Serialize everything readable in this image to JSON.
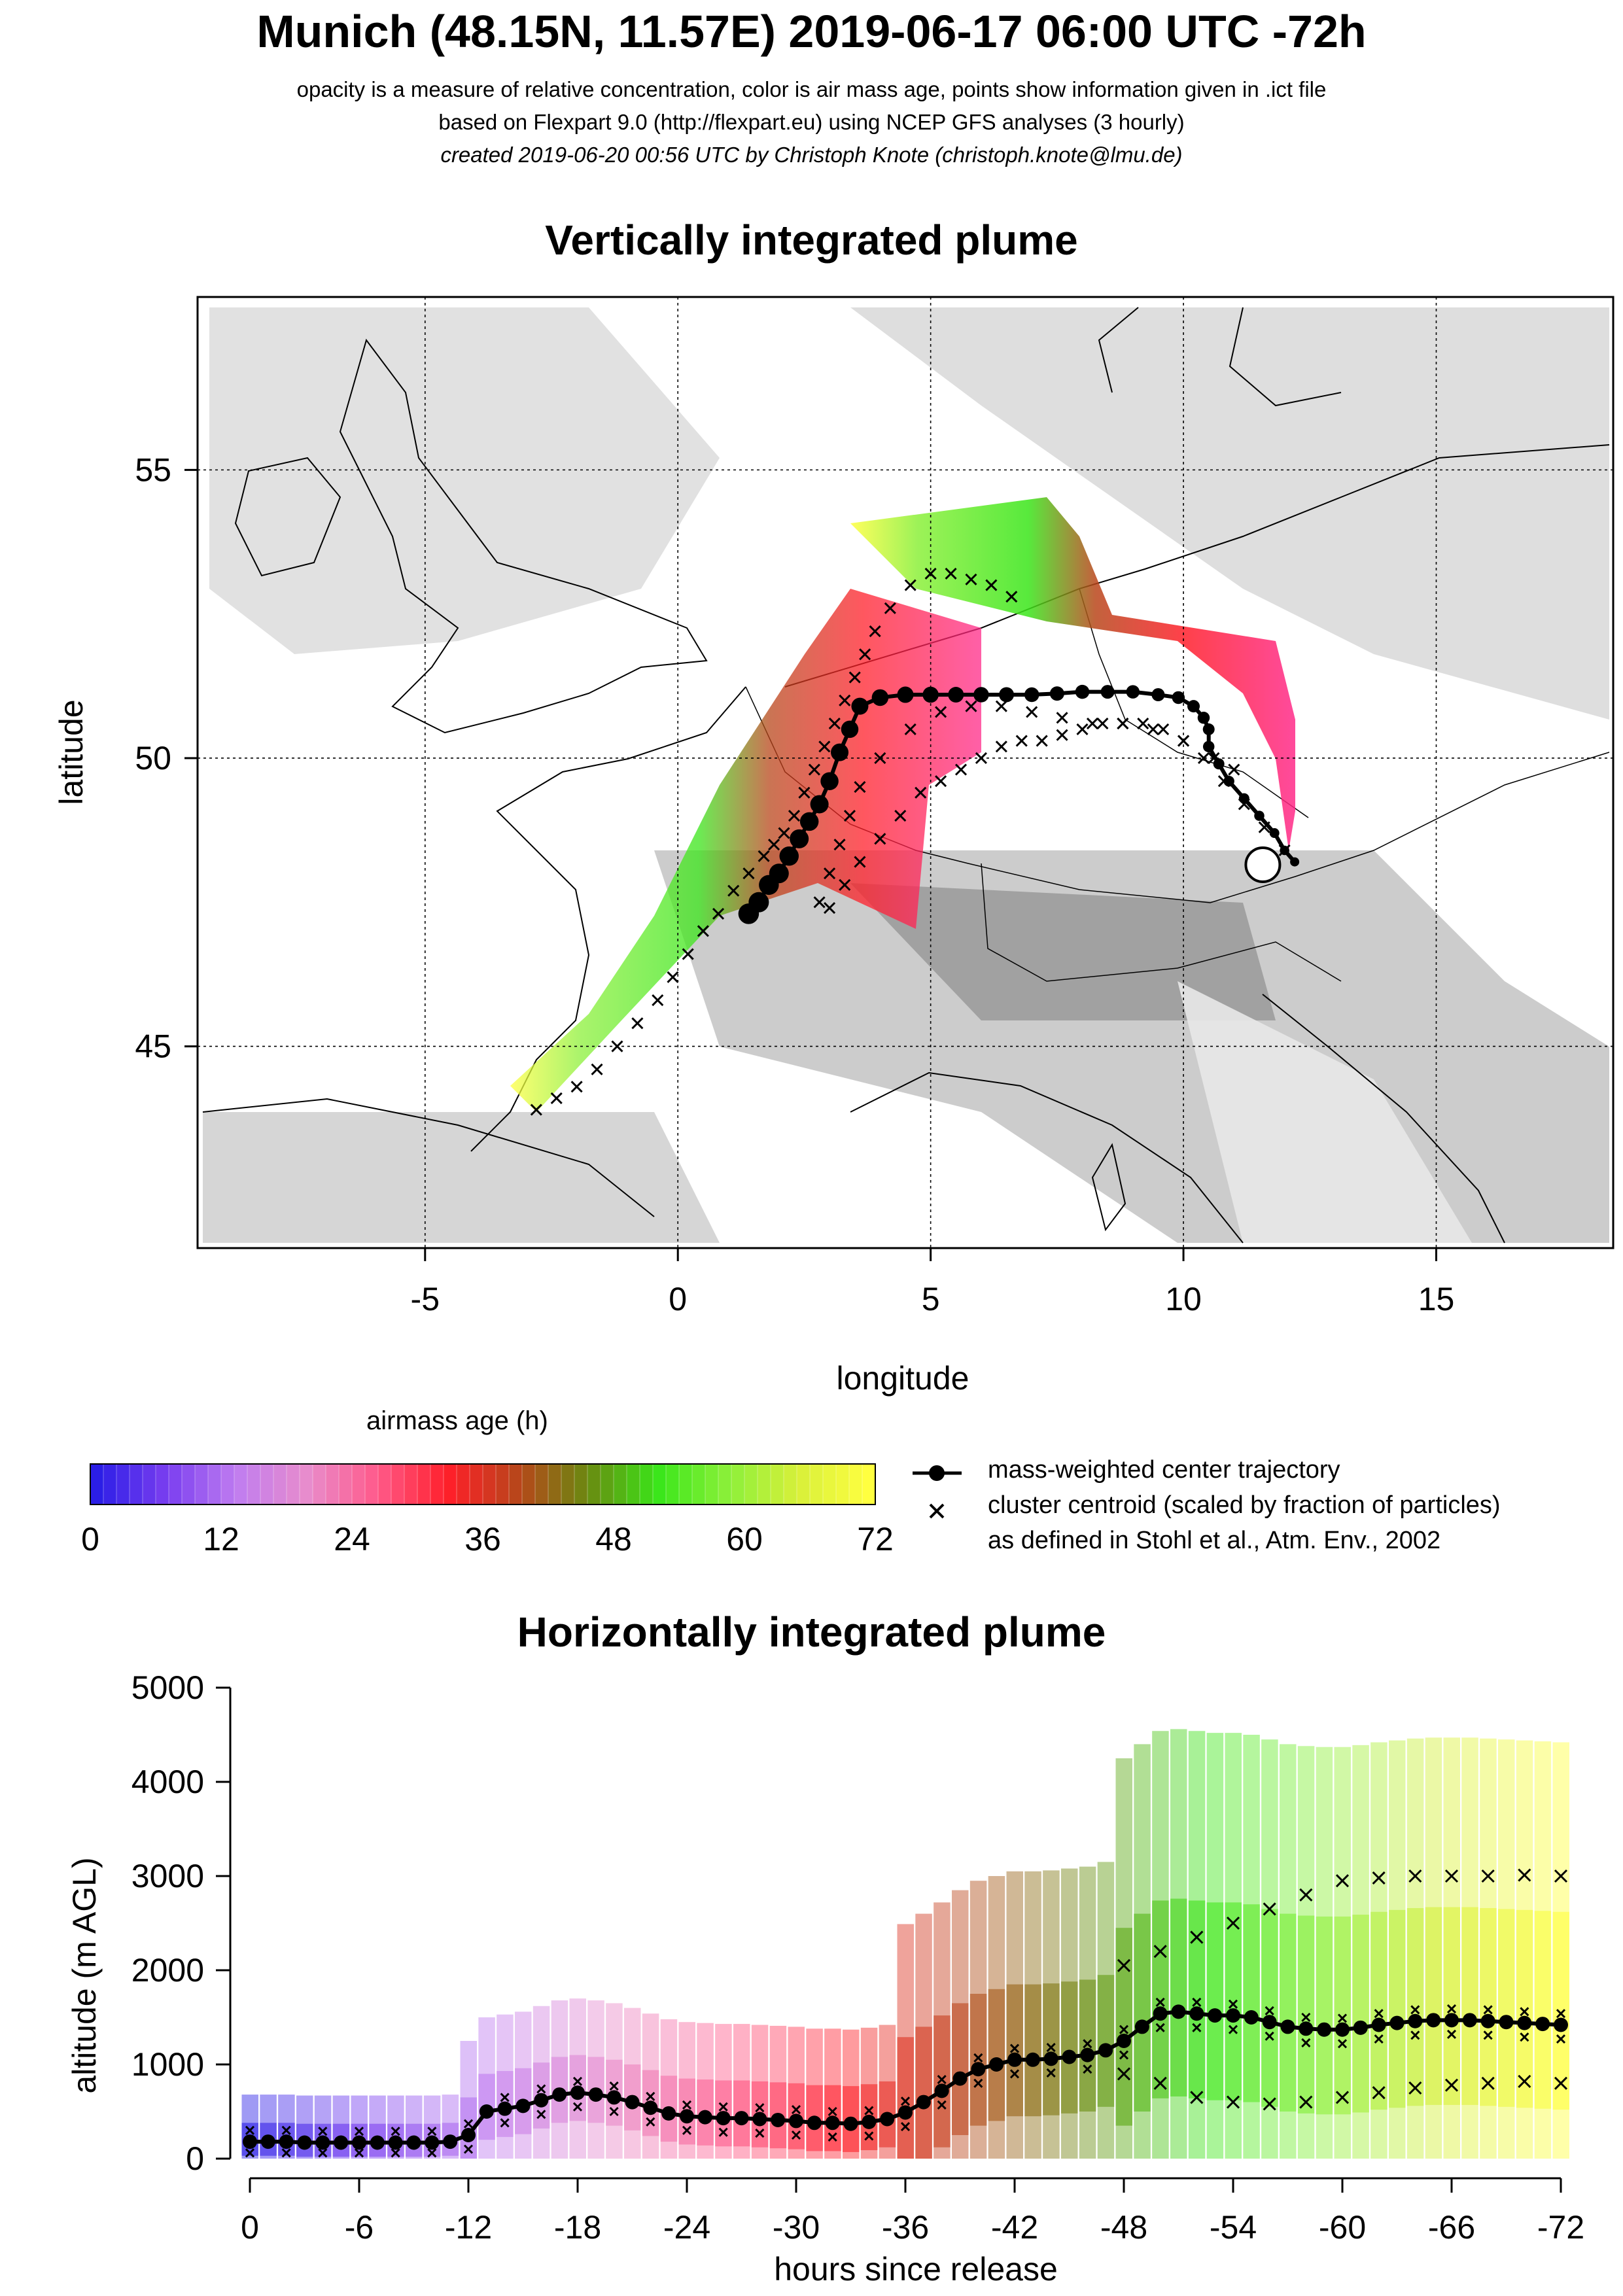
{
  "header": {
    "title": "Munich (48.15N, 11.57E) 2019-06-17 06:00 UTC -72h",
    "line1": "opacity is a measure of relative concentration, color is air mass age, points show information given in .ict file",
    "line2": "based on Flexpart 9.0 (http://flexpart.eu) using NCEP GFS analyses (3 hourly)",
    "line3": "created 2019-06-20 00:56 UTC by Christoph Knote (christoph.knote@lmu.de)"
  },
  "colors": {
    "age_scale": [
      "#2b1ee6",
      "#7a3ef0",
      "#c07df0",
      "#e88ccc",
      "#ff5a8a",
      "#ff1f2a",
      "#b8461a",
      "#6a8a10",
      "#3ae61a",
      "#8cf03a",
      "#d8f03a",
      "#ffff40"
    ],
    "marker": "#000000"
  },
  "colorbar": {
    "title": "airmass age (h)",
    "ticks": [
      "0",
      "12",
      "24",
      "36",
      "48",
      "60",
      "72"
    ]
  },
  "legend": {
    "traj_label": "mass-weighted center trajectory",
    "cluster_label": "cluster centroid (scaled by fraction of particles)",
    "cluster_label2": "as defined in Stohl et al., Atm. Env., 2002"
  },
  "chart_data": [
    {
      "type": "scatter",
      "title": "Vertically integrated plume",
      "xlabel": "longitude",
      "ylabel": "latitude",
      "xlim": [
        -9.5,
        18.5
      ],
      "ylim": [
        41.5,
        58.0
      ],
      "xticks": [
        -5,
        0,
        5,
        10,
        15
      ],
      "yticks": [
        45,
        50,
        55
      ],
      "xtick_labels": [
        "-5",
        "0",
        "5",
        "10",
        "15"
      ],
      "ytick_labels": [
        "45",
        "50",
        "55"
      ],
      "grid": true,
      "release_point": {
        "lon": 11.57,
        "lat": 48.15
      },
      "center_trajectory": {
        "name": "mass-weighted center trajectory",
        "lon": [
          12.2,
          12.0,
          11.8,
          11.5,
          11.2,
          10.9,
          10.7,
          10.5,
          10.5,
          10.4,
          10.2,
          9.9,
          9.5,
          9.0,
          8.5,
          8.0,
          7.5,
          7.0,
          6.5,
          6.0,
          5.5,
          5.0,
          4.5,
          4.0,
          3.6,
          3.4,
          3.2,
          3.0,
          2.8,
          2.6,
          2.4,
          2.2,
          2.0,
          1.8,
          1.6,
          1.4
        ],
        "lat": [
          48.2,
          48.4,
          48.7,
          49.0,
          49.3,
          49.6,
          49.9,
          50.2,
          50.5,
          50.7,
          50.9,
          51.05,
          51.1,
          51.15,
          51.15,
          51.15,
          51.12,
          51.1,
          51.1,
          51.1,
          51.1,
          51.1,
          51.1,
          51.05,
          50.9,
          50.5,
          50.1,
          49.6,
          49.2,
          48.9,
          48.6,
          48.3,
          48.0,
          47.8,
          47.5,
          47.3
        ],
        "age_h": [
          0,
          2,
          4,
          6,
          8,
          10,
          12,
          14,
          16,
          18,
          20,
          22,
          24,
          26,
          28,
          30,
          32,
          34,
          36,
          38,
          40,
          42,
          44,
          46,
          48,
          50,
          52,
          54,
          56,
          58,
          60,
          62,
          64,
          66,
          68,
          72
        ]
      },
      "cluster_centroids": [
        {
          "lon": [
            6.6,
            6.2,
            5.8,
            5.4,
            5.0,
            4.6,
            4.2,
            3.9,
            3.7,
            3.5,
            3.3,
            3.1,
            2.9,
            2.7,
            2.5,
            2.3,
            2.1,
            1.9,
            1.7,
            1.4,
            1.1,
            0.8,
            0.5,
            0.2,
            -0.1,
            -0.4,
            -0.8,
            -1.2,
            -1.6,
            -2.0,
            -2.4,
            -2.8
          ],
          "lat": [
            52.8,
            53.0,
            53.1,
            53.2,
            53.2,
            53.0,
            52.6,
            52.2,
            51.8,
            51.4,
            51.0,
            50.6,
            50.2,
            49.8,
            49.4,
            49.0,
            48.7,
            48.5,
            48.3,
            48.0,
            47.7,
            47.3,
            47.0,
            46.6,
            46.2,
            45.8,
            45.4,
            45.0,
            44.6,
            44.3,
            44.1,
            43.9
          ]
        },
        {
          "lon": [
            12.0,
            11.6,
            11.2,
            10.8,
            10.4,
            10.0,
            9.6,
            9.2,
            8.8,
            8.4,
            8.0,
            7.6,
            7.2,
            6.8,
            6.4,
            6.0,
            5.6,
            5.2,
            4.8,
            4.4,
            4.0,
            3.6,
            3.3,
            3.0
          ],
          "lat": [
            48.4,
            48.8,
            49.2,
            49.6,
            50.0,
            50.3,
            50.5,
            50.6,
            50.6,
            50.6,
            50.5,
            50.4,
            50.3,
            50.3,
            50.2,
            50.0,
            49.8,
            49.6,
            49.4,
            49.0,
            48.6,
            48.2,
            47.8,
            47.4
          ]
        },
        {
          "lon": [
            11.0,
            10.6,
            10.0,
            9.4,
            8.8,
            8.2,
            7.6,
            7.0,
            6.4,
            5.8,
            5.2,
            4.6,
            4.0,
            3.6,
            3.4,
            3.2,
            3.0,
            2.8
          ],
          "lat": [
            49.8,
            50.0,
            50.3,
            50.5,
            50.6,
            50.6,
            50.7,
            50.8,
            50.9,
            50.9,
            50.8,
            50.5,
            50.0,
            49.5,
            49.0,
            48.5,
            48.0,
            47.5
          ]
        }
      ]
    },
    {
      "type": "scatter",
      "title": "Horizontally integrated plume",
      "xlabel": "hours since release",
      "ylabel": "altitude (m AGL)",
      "xlim": [
        0,
        -72
      ],
      "ylim": [
        0,
        5000
      ],
      "xticks": [
        0,
        -6,
        -12,
        -18,
        -24,
        -30,
        -36,
        -42,
        -48,
        -54,
        -60,
        -66,
        -72
      ],
      "xtick_labels": [
        "0",
        "-6",
        "-12",
        "-18",
        "-24",
        "-30",
        "-36",
        "-42",
        "-48",
        "-54",
        "-60",
        "-66",
        "-72"
      ],
      "yticks": [
        0,
        1000,
        2000,
        3000,
        4000,
        5000
      ],
      "ytick_labels": [
        "0",
        "1000",
        "2000",
        "3000",
        "4000",
        "5000"
      ],
      "center_trajectory": {
        "name": "mass-weighted center trajectory",
        "hours": [
          0,
          -1,
          -2,
          -3,
          -4,
          -5,
          -6,
          -7,
          -8,
          -9,
          -10,
          -11,
          -12,
          -13,
          -14,
          -15,
          -16,
          -17,
          -18,
          -19,
          -20,
          -21,
          -22,
          -23,
          -24,
          -25,
          -26,
          -27,
          -28,
          -29,
          -30,
          -31,
          -32,
          -33,
          -34,
          -35,
          -36,
          -37,
          -38,
          -39,
          -40,
          -41,
          -42,
          -43,
          -44,
          -45,
          -46,
          -47,
          -48,
          -49,
          -50,
          -51,
          -52,
          -53,
          -54,
          -55,
          -56,
          -57,
          -58,
          -59,
          -60,
          -61,
          -62,
          -63,
          -64,
          -65,
          -66,
          -67,
          -68,
          -69,
          -70,
          -71,
          -72
        ],
        "altitude": [
          180,
          180,
          180,
          170,
          170,
          170,
          170,
          170,
          170,
          170,
          170,
          180,
          250,
          500,
          530,
          560,
          620,
          680,
          700,
          680,
          650,
          600,
          540,
          480,
          450,
          440,
          430,
          430,
          420,
          410,
          400,
          380,
          380,
          370,
          390,
          420,
          490,
          600,
          720,
          850,
          950,
          1000,
          1050,
          1050,
          1060,
          1080,
          1100,
          1150,
          1250,
          1400,
          1540,
          1560,
          1540,
          1520,
          1520,
          1500,
          1450,
          1400,
          1380,
          1370,
          1370,
          1390,
          1420,
          1440,
          1460,
          1470,
          1470,
          1470,
          1460,
          1450,
          1440,
          1430,
          1420
        ]
      },
      "cluster_upper": {
        "hours": [
          -48,
          -50,
          -52,
          -54,
          -56,
          -58,
          -60,
          -62,
          -64,
          -66,
          -68,
          -70,
          -72
        ],
        "altitude": [
          2050,
          2200,
          2350,
          2500,
          2650,
          2800,
          2950,
          2980,
          3000,
          3000,
          3000,
          3010,
          3000
        ]
      },
      "cluster_lower": {
        "hours": [
          -48,
          -50,
          -52,
          -54,
          -56,
          -58,
          -60,
          -62,
          -64,
          -66,
          -68,
          -70,
          -72
        ],
        "altitude": [
          900,
          800,
          650,
          600,
          580,
          600,
          650,
          700,
          750,
          780,
          800,
          820,
          800
        ]
      }
    }
  ]
}
